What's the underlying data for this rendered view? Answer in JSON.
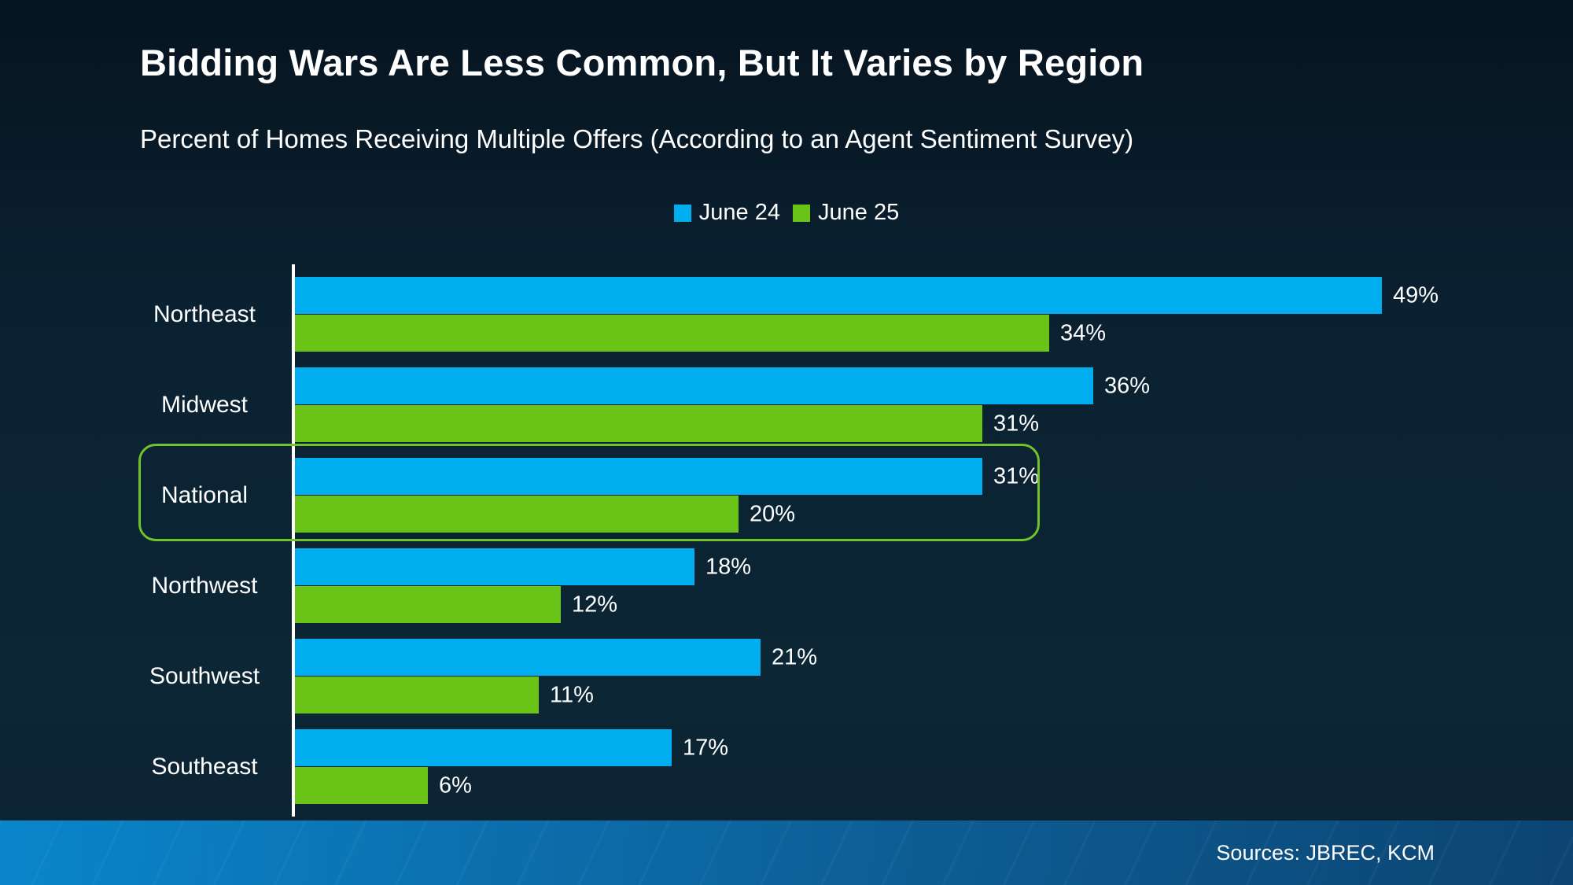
{
  "header": {
    "title": "Bidding Wars Are Less Common, But It Varies by Region",
    "subtitle": "Percent of Homes Receiving Multiple Offers (According to an Agent Sentiment Survey)"
  },
  "chart_data": {
    "type": "bar",
    "orientation": "horizontal",
    "title": "Bidding Wars Are Less Common, But It Varies by Region",
    "subtitle": "Percent of Homes Receiving Multiple Offers (According to an Agent Sentiment Survey)",
    "categories": [
      "Northeast",
      "Midwest",
      "National",
      "Northwest",
      "Southwest",
      "Southeast"
    ],
    "series": [
      {
        "name": "June 24",
        "color": "#00aeef",
        "values": [
          49,
          36,
          31,
          18,
          21,
          17
        ]
      },
      {
        "name": "June 25",
        "color": "#69c417",
        "values": [
          34,
          31,
          20,
          12,
          11,
          6
        ]
      }
    ],
    "value_suffix": "%",
    "xlim": [
      0,
      52
    ],
    "grid": false,
    "legend_position": "top",
    "highlighted_category": "National",
    "highlight_border_color": "#72c32b"
  },
  "footer": {
    "sources": "Sources: JBREC, KCM"
  },
  "colors": {
    "background_dark": "#0b2232",
    "bar_blue": "#00aeef",
    "bar_green": "#69c417",
    "axis_line": "#ffffff",
    "footer_band_left": "#0a85cb",
    "footer_band_right": "#0c4472",
    "text": "#ffffff"
  }
}
